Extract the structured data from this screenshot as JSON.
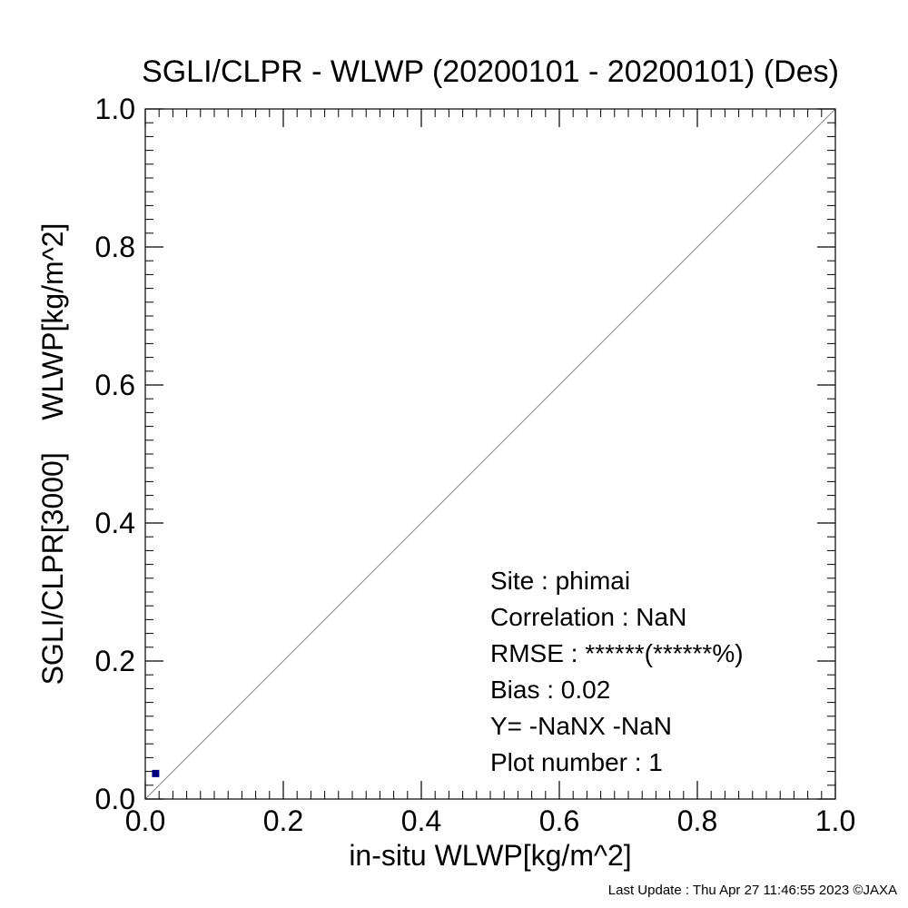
{
  "chart_data": {
    "type": "scatter",
    "title": "SGLI/CLPR - WLWP (20200101 - 20200101) (Des)",
    "xlabel": "in-situ WLWP[kg/m^2]",
    "ylabel": "SGLI/CLPR[3000]    WLWP[kg/m^2]",
    "xlim": [
      0.0,
      1.0
    ],
    "ylim": [
      0.0,
      1.0
    ],
    "xticks": [
      "0.0",
      "0.2",
      "0.4",
      "0.6",
      "0.8",
      "1.0"
    ],
    "yticks": [
      "0.0",
      "0.2",
      "0.4",
      "0.6",
      "0.8",
      "1.0"
    ],
    "reference_line": "1:1",
    "grid": false,
    "points": [
      {
        "x": 0.015,
        "y": 0.037
      }
    ],
    "marker_color": "#00007f",
    "stats": {
      "site": "Site : phimai",
      "correlation": "Correlation :      NaN",
      "rmse": "RMSE :   ******(******%)",
      "bias": "Bias :     0.02",
      "regression": "Y=   -NaNX   -NaN",
      "plot_number": "Plot number :        1"
    }
  },
  "footer": "Last Update : Thu Apr 27 11:46:55 2023  ©JAXA"
}
